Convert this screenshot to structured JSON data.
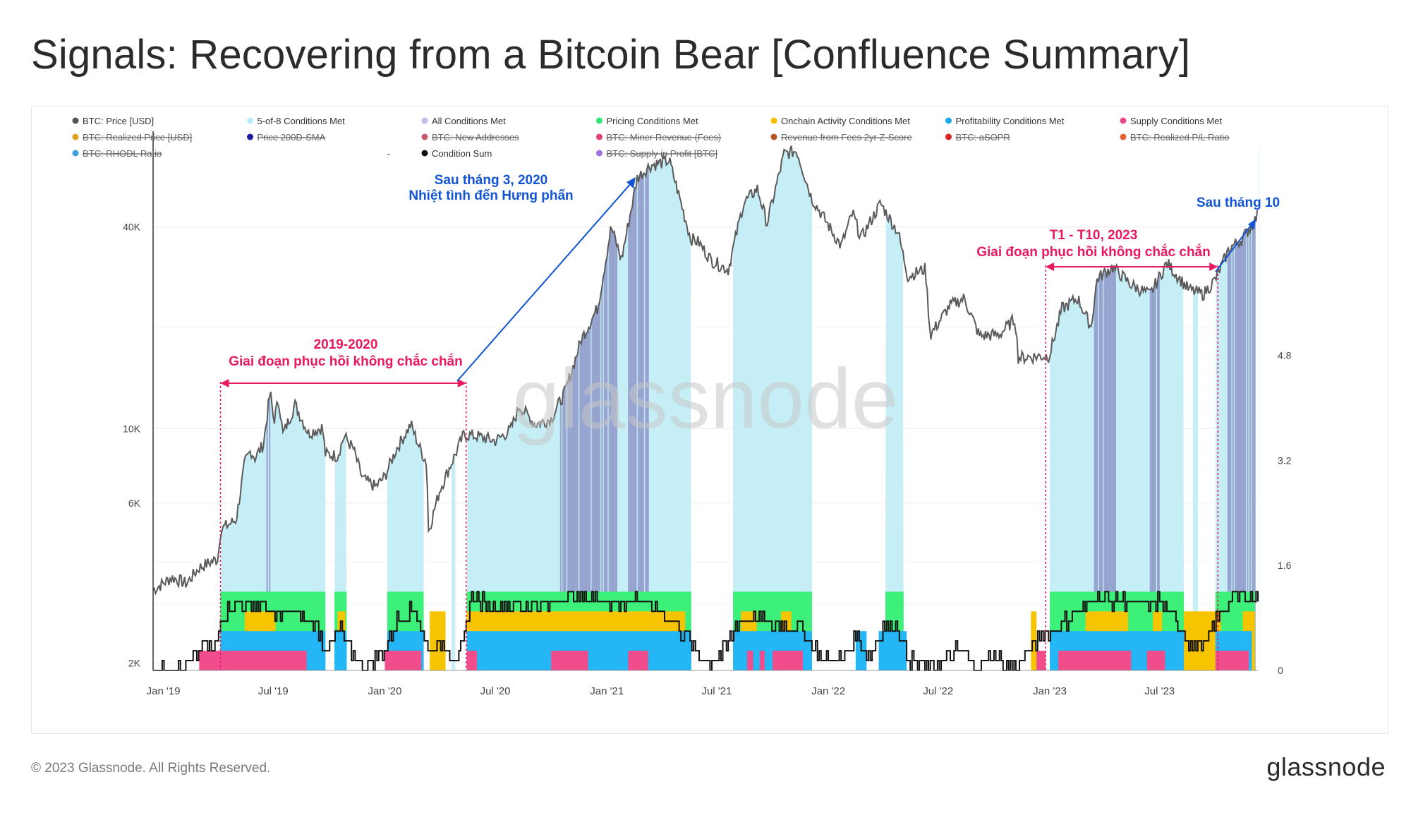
{
  "page": {
    "title": "Signals: Recovering from a Bitcoin Bear [Confluence Summary]",
    "copyright": "© 2023 Glassnode. All Rights Reserved.",
    "logo_text": "glassnode"
  },
  "chart_data": {
    "type": "line",
    "title": "Signals: Recovering from a Bitcoin Bear [Confluence Summary]",
    "watermark": "glassnode",
    "legend": [
      {
        "label": "BTC: Price [USD]",
        "color": "#555555",
        "active": true
      },
      {
        "label": "5-of-8 Conditions Met",
        "color": "#bdebf5",
        "active": true
      },
      {
        "label": "All Conditions Met",
        "color": "#b9bfe6",
        "active": true
      },
      {
        "label": "Pricing Conditions Met",
        "color": "#2ee86f",
        "active": true
      },
      {
        "label": "Onchain Activity Conditions Met",
        "color": "#f5c000",
        "active": true
      },
      {
        "label": "Profitability Conditions Met",
        "color": "#1ea8f0",
        "active": true
      },
      {
        "label": "Supply Conditions Met",
        "color": "#ea4a8a",
        "active": true
      },
      {
        "label": "BTC: Realized Price [USD]",
        "color": "#e0a020",
        "active": false
      },
      {
        "label": "Price 200D-SMA",
        "color": "#1c1c9c",
        "active": false
      },
      {
        "label": "BTC: New Addresses",
        "color": "#c45a6a",
        "active": false
      },
      {
        "label": "BTC: Miner Revenue (Fees)",
        "color": "#e0407a",
        "active": false
      },
      {
        "label": "Revenue from Fees 2yr Z-Score",
        "color": "#b85020",
        "active": false
      },
      {
        "label": "BTC: aSOPR",
        "color": "#e02020",
        "active": false
      },
      {
        "label": "BTC: Realized P/L Ratio",
        "color": "#e06030",
        "active": false
      },
      {
        "label": "BTC: RHODL Ratio",
        "color": "#40a0e0",
        "active": false
      },
      {
        "label": "-",
        "color": "",
        "active": true
      },
      {
        "label": "Condition Sum",
        "color": "#111111",
        "active": true
      },
      {
        "label": "BTC: Supply in Profit [BTC]",
        "color": "#a070e0",
        "active": false
      }
    ],
    "x_axis": {
      "range": [
        "2018-12-15",
        "2023-12-10"
      ],
      "tick_labels": [
        "Jan '19",
        "Jul '19",
        "Jan '20",
        "Jul '20",
        "Jan '21",
        "Jul '21",
        "Jan '22",
        "Jul '22",
        "Jan '23",
        "Jul '23"
      ],
      "tick_dates": [
        "2019-01-01",
        "2019-07-01",
        "2020-01-01",
        "2020-07-01",
        "2021-01-01",
        "2021-07-01",
        "2022-01-01",
        "2022-07-01",
        "2023-01-01",
        "2023-07-01"
      ]
    },
    "y_left": {
      "scale": "log",
      "range": [
        1900,
        70000
      ],
      "tick_labels": [
        "2K",
        "6K",
        "10K",
        "40K"
      ],
      "tick_values": [
        2000,
        6000,
        10000,
        40000
      ]
    },
    "y_right": {
      "scale": "linear",
      "range": [
        0,
        8
      ],
      "tick_labels": [
        "0",
        "1.6",
        "3.2",
        "4.8"
      ],
      "tick_values": [
        0,
        1.6,
        3.2,
        4.8
      ]
    },
    "price_series": {
      "name": "BTC: Price [USD]",
      "points": [
        [
          "2018-12-15",
          3300
        ],
        [
          "2019-01-15",
          3600
        ],
        [
          "2019-02-08",
          3450
        ],
        [
          "2019-03-01",
          3850
        ],
        [
          "2019-04-01",
          4100
        ],
        [
          "2019-04-05",
          5000
        ],
        [
          "2019-05-01",
          5350
        ],
        [
          "2019-05-15",
          7900
        ],
        [
          "2019-05-25",
          8600
        ],
        [
          "2019-06-01",
          8200
        ],
        [
          "2019-06-15",
          9000
        ],
        [
          "2019-06-26",
          12900
        ],
        [
          "2019-07-02",
          10500
        ],
        [
          "2019-07-10",
          12300
        ],
        [
          "2019-07-17",
          9600
        ],
        [
          "2019-08-06",
          11800
        ],
        [
          "2019-08-28",
          9700
        ],
        [
          "2019-09-20",
          10100
        ],
        [
          "2019-09-25",
          8400
        ],
        [
          "2019-10-15",
          8300
        ],
        [
          "2019-10-26",
          9500
        ],
        [
          "2019-11-10",
          8700
        ],
        [
          "2019-11-25",
          7100
        ],
        [
          "2019-12-17",
          6700
        ],
        [
          "2020-01-01",
          7200
        ],
        [
          "2020-01-20",
          8700
        ],
        [
          "2020-02-13",
          10300
        ],
        [
          "2020-02-28",
          8700
        ],
        [
          "2020-03-10",
          7900
        ],
        [
          "2020-03-13",
          4950
        ],
        [
          "2020-04-01",
          6600
        ],
        [
          "2020-04-30",
          8700
        ],
        [
          "2020-05-10",
          9600
        ],
        [
          "2020-06-01",
          9500
        ],
        [
          "2020-07-01",
          9200
        ],
        [
          "2020-07-26",
          9900
        ],
        [
          "2020-08-10",
          11700
        ],
        [
          "2020-09-05",
          10300
        ],
        [
          "2020-10-01",
          10700
        ],
        [
          "2020-10-25",
          13000
        ],
        [
          "2020-11-20",
          18500
        ],
        [
          "2020-12-17",
          23000
        ],
        [
          "2021-01-08",
          40000
        ],
        [
          "2021-01-25",
          32000
        ],
        [
          "2021-02-20",
          56000
        ],
        [
          "2021-03-13",
          61000
        ],
        [
          "2021-04-14",
          63000
        ],
        [
          "2021-05-19",
          37000
        ],
        [
          "2021-06-01",
          36000
        ],
        [
          "2021-06-22",
          31800
        ],
        [
          "2021-07-20",
          29800
        ],
        [
          "2021-08-14",
          47000
        ],
        [
          "2021-09-06",
          52000
        ],
        [
          "2021-09-22",
          41000
        ],
        [
          "2021-10-20",
          66000
        ],
        [
          "2021-11-10",
          67500
        ],
        [
          "2021-12-04",
          49000
        ],
        [
          "2022-01-22",
          35000
        ],
        [
          "2022-02-10",
          44000
        ],
        [
          "2022-02-24",
          37000
        ],
        [
          "2022-03-28",
          47000
        ],
        [
          "2022-04-26",
          38500
        ],
        [
          "2022-05-12",
          28500
        ],
        [
          "2022-06-10",
          30000
        ],
        [
          "2022-06-18",
          19000
        ],
        [
          "2022-07-20",
          23300
        ],
        [
          "2022-08-13",
          24500
        ],
        [
          "2022-09-07",
          18900
        ],
        [
          "2022-10-10",
          19100
        ],
        [
          "2022-11-05",
          21300
        ],
        [
          "2022-11-10",
          16300
        ],
        [
          "2022-12-31",
          16500
        ],
        [
          "2023-01-21",
          22800
        ],
        [
          "2023-02-16",
          24500
        ],
        [
          "2023-03-10",
          20100
        ],
        [
          "2023-03-20",
          28000
        ],
        [
          "2023-04-14",
          30400
        ],
        [
          "2023-05-15",
          26900
        ],
        [
          "2023-06-15",
          25100
        ],
        [
          "2023-07-13",
          31200
        ],
        [
          "2023-08-18",
          26000
        ],
        [
          "2023-09-11",
          25200
        ],
        [
          "2023-10-01",
          27900
        ],
        [
          "2023-10-24",
          34500
        ],
        [
          "2023-11-15",
          37000
        ],
        [
          "2023-12-04",
          41500
        ],
        [
          "2023-12-10",
          43500
        ]
      ]
    },
    "condition_sum_series": {
      "name": "Condition Sum",
      "points": [
        [
          "2018-12-15",
          0
        ],
        [
          "2019-02-01",
          0
        ],
        [
          "2019-02-20",
          0.2
        ],
        [
          "2019-03-10",
          0.4
        ],
        [
          "2019-03-25",
          0.3
        ],
        [
          "2019-04-05",
          0.8
        ],
        [
          "2019-05-01",
          1.0
        ],
        [
          "2019-06-15",
          1.0
        ],
        [
          "2019-07-01",
          0.8
        ],
        [
          "2019-08-01",
          0.9
        ],
        [
          "2019-09-10",
          0.7
        ],
        [
          "2019-09-25",
          0.3
        ],
        [
          "2019-10-20",
          0.6
        ],
        [
          "2019-11-10",
          0.2
        ],
        [
          "2019-12-01",
          0.1
        ],
        [
          "2020-01-01",
          0.3
        ],
        [
          "2020-01-20",
          0.8
        ],
        [
          "2020-02-20",
          0.9
        ],
        [
          "2020-03-13",
          0.3
        ],
        [
          "2020-04-10",
          0.4
        ],
        [
          "2020-05-01",
          0.1
        ],
        [
          "2020-05-12",
          0.6
        ],
        [
          "2020-05-20",
          1.1
        ],
        [
          "2020-07-01",
          1.0
        ],
        [
          "2020-09-01",
          1.0
        ],
        [
          "2020-10-01",
          1.0
        ],
        [
          "2020-10-20",
          1.1
        ],
        [
          "2020-12-20",
          1.1
        ],
        [
          "2021-01-10",
          1.0
        ],
        [
          "2021-02-15",
          1.1
        ],
        [
          "2021-04-01",
          0.9
        ],
        [
          "2021-04-20",
          0.7
        ],
        [
          "2021-05-15",
          0.5
        ],
        [
          "2021-06-01",
          0.25
        ],
        [
          "2021-06-20",
          0.15
        ],
        [
          "2021-07-15",
          0.3
        ],
        [
          "2021-08-01",
          0.7
        ],
        [
          "2021-09-15",
          0.8
        ],
        [
          "2021-10-01",
          0.7
        ],
        [
          "2021-11-15",
          0.7
        ],
        [
          "2021-12-01",
          0.45
        ],
        [
          "2021-12-20",
          0.2
        ],
        [
          "2022-01-20",
          0.15
        ],
        [
          "2022-02-15",
          0.5
        ],
        [
          "2022-03-10",
          0.2
        ],
        [
          "2022-04-01",
          0.7
        ],
        [
          "2022-04-25",
          0.7
        ],
        [
          "2022-05-10",
          0.2
        ],
        [
          "2022-06-15",
          0.0
        ],
        [
          "2022-08-01",
          0.3
        ],
        [
          "2022-09-01",
          0.1
        ],
        [
          "2022-10-01",
          0.2
        ],
        [
          "2022-11-10",
          0.0
        ],
        [
          "2022-11-20",
          0.2
        ],
        [
          "2022-12-15",
          0.5
        ],
        [
          "2023-01-05",
          0.6
        ],
        [
          "2023-02-01",
          0.8
        ],
        [
          "2023-03-01",
          0.95
        ],
        [
          "2023-03-15",
          1.1
        ],
        [
          "2023-05-01",
          1.05
        ],
        [
          "2023-06-01",
          1.0
        ],
        [
          "2023-07-01",
          1.05
        ],
        [
          "2023-08-01",
          0.7
        ],
        [
          "2023-08-20",
          0.4
        ],
        [
          "2023-09-15",
          0.4
        ],
        [
          "2023-10-05",
          0.8
        ],
        [
          "2023-10-25",
          1.1
        ],
        [
          "2023-12-10",
          1.1
        ]
      ]
    },
    "condition_bands": {
      "unit": "right_axis_value",
      "supply": {
        "color": "#f14c8c",
        "height": 0.3,
        "intervals": [
          [
            "2019-03-01",
            "2019-08-25"
          ],
          [
            "2020-01-01",
            "2020-03-01"
          ],
          [
            "2020-05-15",
            "2020-06-01"
          ],
          [
            "2020-10-01",
            "2020-12-01"
          ],
          [
            "2021-02-05",
            "2021-03-10"
          ],
          [
            "2021-08-20",
            "2021-08-30"
          ],
          [
            "2021-09-10",
            "2021-09-18"
          ],
          [
            "2021-10-01",
            "2021-11-20"
          ],
          [
            "2022-12-10",
            "2022-12-25"
          ],
          [
            "2023-01-15",
            "2023-05-15"
          ],
          [
            "2023-06-10",
            "2023-07-10"
          ],
          [
            "2023-10-01",
            "2023-11-25"
          ]
        ]
      },
      "profitability": {
        "color": "#24b6f5",
        "height": 0.6,
        "intervals": [
          [
            "2019-04-05",
            "2019-09-25"
          ],
          [
            "2019-10-10",
            "2019-10-30"
          ],
          [
            "2020-01-05",
            "2020-03-05"
          ],
          [
            "2020-05-15",
            "2021-05-20"
          ],
          [
            "2021-07-28",
            "2021-12-05"
          ],
          [
            "2022-02-15",
            "2022-03-05"
          ],
          [
            "2022-03-25",
            "2022-05-10"
          ],
          [
            "2023-01-01",
            "2023-08-10"
          ],
          [
            "2023-10-01",
            "2023-11-30"
          ]
        ]
      },
      "onchain": {
        "color": "#f7c400",
        "height": 0.9,
        "intervals": [
          [
            "2019-05-15",
            "2019-07-05"
          ],
          [
            "2019-10-15",
            "2019-10-28"
          ],
          [
            "2020-03-15",
            "2020-04-10"
          ],
          [
            "2020-05-15",
            "2021-05-10"
          ],
          [
            "2021-08-10",
            "2021-09-05"
          ],
          [
            "2021-10-15",
            "2021-11-01"
          ],
          [
            "2022-12-01",
            "2022-12-10"
          ],
          [
            "2023-03-01",
            "2023-05-10"
          ],
          [
            "2023-06-20",
            "2023-07-05"
          ],
          [
            "2023-08-10",
            "2023-10-10"
          ],
          [
            "2023-11-15",
            "2023-12-05"
          ]
        ]
      },
      "pricing": {
        "color": "#3cf07a",
        "height": 1.2,
        "intervals": [
          [
            "2019-04-05",
            "2019-09-25"
          ],
          [
            "2019-10-10",
            "2019-10-30"
          ],
          [
            "2020-01-05",
            "2020-03-05"
          ],
          [
            "2020-05-15",
            "2021-05-20"
          ],
          [
            "2021-07-28",
            "2021-12-05"
          ],
          [
            "2022-04-05",
            "2022-05-05"
          ],
          [
            "2023-01-01",
            "2023-08-10"
          ],
          [
            "2023-10-01",
            "2023-12-05"
          ]
        ]
      }
    },
    "five_of_eight_intervals": [
      [
        "2019-04-05",
        "2019-09-25"
      ],
      [
        "2019-10-10",
        "2019-10-30"
      ],
      [
        "2020-01-05",
        "2020-03-05"
      ],
      [
        "2020-04-20",
        "2020-04-26"
      ],
      [
        "2020-05-15",
        "2021-05-20"
      ],
      [
        "2021-07-28",
        "2021-12-05"
      ],
      [
        "2022-04-05",
        "2022-05-05"
      ],
      [
        "2023-01-01",
        "2023-08-10"
      ],
      [
        "2023-08-25",
        "2023-09-02"
      ],
      [
        "2023-10-01",
        "2023-12-05"
      ]
    ],
    "all_conditions_intervals": [
      [
        "2019-06-20",
        "2019-06-27"
      ],
      [
        "2020-10-15",
        "2021-01-20"
      ],
      [
        "2021-02-05",
        "2021-03-10"
      ],
      [
        "2023-03-15",
        "2023-04-20"
      ],
      [
        "2023-06-15",
        "2023-06-30"
      ],
      [
        "2023-10-20",
        "2023-12-05"
      ]
    ],
    "annotations": [
      {
        "lines": [
          "2019-2020",
          "Giai đoạn phục hồi không chắc chắn"
        ],
        "color": "#e8195e",
        "date": "2019-09-15",
        "price": 13500
      },
      {
        "lines": [
          "Sau tháng 3, 2020",
          "Nhiệt tình đến Hưng phấn"
        ],
        "color": "#1155d6",
        "date": "2020-09-15",
        "price": 64000
      },
      {
        "lines": [
          "T1 - T10, 2023",
          "Giai đoạn phục hồi không chắc chắn"
        ],
        "color": "#e8195e",
        "date": "2023-04-15",
        "price": 37000
      },
      {
        "lines": [
          "Sau tháng 10"
        ],
        "color": "#1155d6",
        "date": "2023-11-01",
        "price": 51000
      }
    ]
  }
}
